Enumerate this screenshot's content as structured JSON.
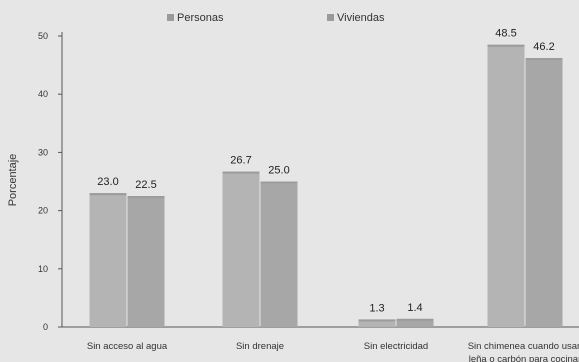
{
  "chart_data": {
    "type": "bar",
    "categories": [
      "Sin acceso al agua",
      "Sin drenaje",
      "Sin electricidad",
      "Sin chimenea cuando usan leña o carbón para cocinar"
    ],
    "series": [
      {
        "name": "Personas",
        "values": [
          23.0,
          26.7,
          1.3,
          48.5
        ],
        "labels": [
          "23.0",
          "26.7",
          "1.3",
          "48.5"
        ],
        "color": "#b4b4b4"
      },
      {
        "name": "Viviendas",
        "values": [
          22.5,
          25.0,
          1.4,
          46.2
        ],
        "labels": [
          "22.5",
          "25.0",
          "1.4",
          "46.2"
        ],
        "color": "#a7a7a7"
      }
    ],
    "ylabel": "Porcentaje",
    "xlabel": "",
    "title": "",
    "ylim": [
      0,
      50
    ],
    "yticks": [
      "0",
      "10",
      "20",
      "30",
      "40",
      "50"
    ],
    "legend_position": "top",
    "grid": false
  }
}
